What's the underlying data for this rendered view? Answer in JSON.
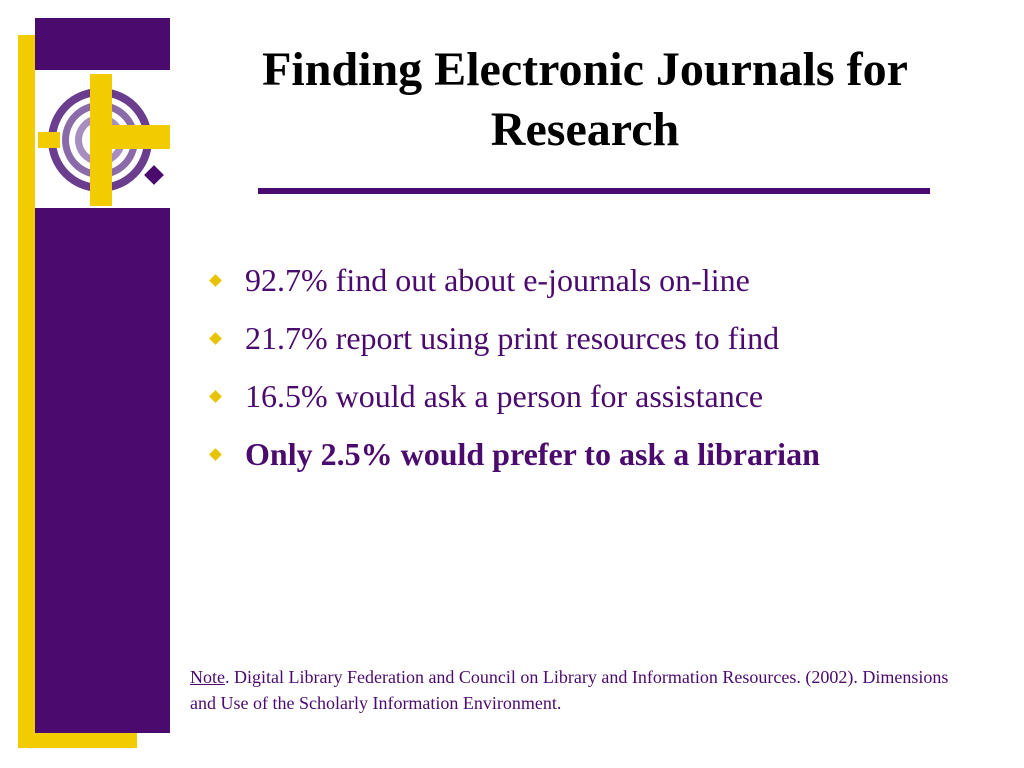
{
  "title": "Finding Electronic Journals for Research",
  "bullets": [
    {
      "text": "92.7% find out about e-journals on-line",
      "bold": false
    },
    {
      "text": "21.7% report using print resources to find",
      "bold": false
    },
    {
      "text": "16.5% would ask a person for assistance",
      "bold": false
    },
    {
      "text": "Only 2.5% would prefer to ask a librarian",
      "bold": true
    }
  ],
  "note": {
    "label": "Note",
    "text": ". Digital Library Federation and Council on Library and Information Resources. (2002). Dimensions and Use of the Scholarly Information Environment."
  }
}
